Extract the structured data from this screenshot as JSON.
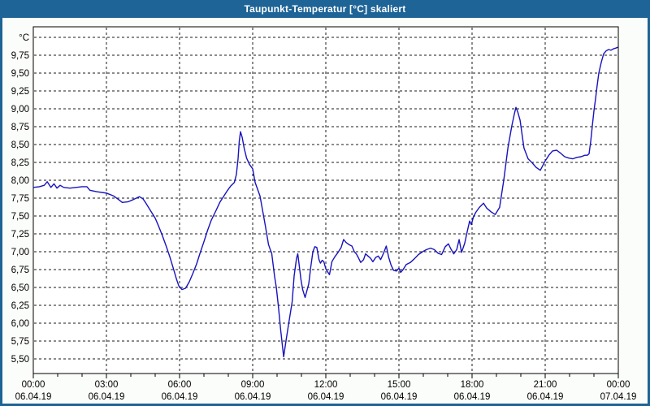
{
  "window": {
    "title": "Taupunkt-Temperatur [°C] skaliert"
  },
  "colors": {
    "titlebar": "#1e6496",
    "window_border": "#1e6496",
    "window_bg": "#fbfdfa",
    "plot_bg": "#ffffff",
    "plot_border": "#000000",
    "grid": "#1a1a1a",
    "tick": "#000000",
    "label_text": "#000000",
    "title_text": "#ffffff",
    "line": "#1813bd"
  },
  "chart_data": {
    "type": "line",
    "title": "Taupunkt-Temperatur [°C] skaliert",
    "xlabel": "",
    "ylabel": "°C",
    "xlim_hours": [
      0,
      24
    ],
    "ylim": [
      5.3,
      10.15
    ],
    "grid": "dashed",
    "legend": "none",
    "y_axis": {
      "unit_label": "°C",
      "unit_label_value": 10.0,
      "gridline_min": 5.5,
      "gridline_max": 10.0,
      "gridline_step": 0.25,
      "tick_labels": [
        {
          "label": "9,75",
          "value": 9.75
        },
        {
          "label": "9,50",
          "value": 9.5
        },
        {
          "label": "9,25",
          "value": 9.25
        },
        {
          "label": "9,00",
          "value": 9.0
        },
        {
          "label": "8,75",
          "value": 8.75
        },
        {
          "label": "8,50",
          "value": 8.5
        },
        {
          "label": "8,25",
          "value": 8.25
        },
        {
          "label": "8,00",
          "value": 8.0
        },
        {
          "label": "7,75",
          "value": 7.75
        },
        {
          "label": "7,50",
          "value": 7.5
        },
        {
          "label": "7,25",
          "value": 7.25
        },
        {
          "label": "7,00",
          "value": 7.0
        },
        {
          "label": "6,75",
          "value": 6.75
        },
        {
          "label": "6,50",
          "value": 6.5
        },
        {
          "label": "6,25",
          "value": 6.25
        },
        {
          "label": "6,00",
          "value": 6.0
        },
        {
          "label": "5,75",
          "value": 5.75
        },
        {
          "label": "5,50",
          "value": 5.5
        }
      ]
    },
    "x_axis": {
      "minor_tick_every_hours": 1,
      "major_tick_every_hours": 3,
      "ticks": [
        {
          "t": 0,
          "time": "00:00",
          "date": "06.04.19"
        },
        {
          "t": 3,
          "time": "03:00",
          "date": "06.04.19"
        },
        {
          "t": 6,
          "time": "06:00",
          "date": "06.04.19"
        },
        {
          "t": 9,
          "time": "09:00",
          "date": "06.04.19"
        },
        {
          "t": 12,
          "time": "12:00",
          "date": "06.04.19"
        },
        {
          "t": 15,
          "time": "15:00",
          "date": "06.04.19"
        },
        {
          "t": 18,
          "time": "18:00",
          "date": "06.04.19"
        },
        {
          "t": 21,
          "time": "21:00",
          "date": "06.04.19"
        },
        {
          "t": 24,
          "time": "00:00",
          "date": "07.04.19"
        }
      ]
    },
    "series": [
      {
        "name": "Taupunkt-Temperatur",
        "points": [
          [
            0.0,
            7.9
          ],
          [
            0.25,
            7.91
          ],
          [
            0.45,
            7.93
          ],
          [
            0.57,
            7.98
          ],
          [
            0.72,
            7.9
          ],
          [
            0.85,
            7.95
          ],
          [
            0.97,
            7.89
          ],
          [
            1.1,
            7.93
          ],
          [
            1.25,
            7.9
          ],
          [
            1.5,
            7.89
          ],
          [
            1.75,
            7.9
          ],
          [
            2.0,
            7.91
          ],
          [
            2.2,
            7.91
          ],
          [
            2.32,
            7.86
          ],
          [
            2.6,
            7.84
          ],
          [
            3.0,
            7.82
          ],
          [
            3.3,
            7.78
          ],
          [
            3.5,
            7.73
          ],
          [
            3.65,
            7.69
          ],
          [
            3.9,
            7.7
          ],
          [
            4.1,
            7.73
          ],
          [
            4.35,
            7.77
          ],
          [
            4.5,
            7.74
          ],
          [
            4.62,
            7.68
          ],
          [
            4.8,
            7.58
          ],
          [
            5.0,
            7.47
          ],
          [
            5.15,
            7.35
          ],
          [
            5.3,
            7.22
          ],
          [
            5.45,
            7.08
          ],
          [
            5.6,
            6.93
          ],
          [
            5.75,
            6.76
          ],
          [
            5.87,
            6.62
          ],
          [
            5.97,
            6.52
          ],
          [
            6.1,
            6.47
          ],
          [
            6.25,
            6.49
          ],
          [
            6.4,
            6.58
          ],
          [
            6.55,
            6.7
          ],
          [
            6.7,
            6.83
          ],
          [
            6.85,
            6.99
          ],
          [
            7.0,
            7.14
          ],
          [
            7.15,
            7.3
          ],
          [
            7.3,
            7.44
          ],
          [
            7.5,
            7.58
          ],
          [
            7.65,
            7.69
          ],
          [
            7.8,
            7.77
          ],
          [
            7.95,
            7.85
          ],
          [
            8.1,
            7.92
          ],
          [
            8.25,
            7.97
          ],
          [
            8.33,
            8.08
          ],
          [
            8.4,
            8.3
          ],
          [
            8.45,
            8.55
          ],
          [
            8.5,
            8.68
          ],
          [
            8.57,
            8.6
          ],
          [
            8.65,
            8.45
          ],
          [
            8.75,
            8.31
          ],
          [
            8.87,
            8.22
          ],
          [
            9.0,
            8.16
          ],
          [
            9.1,
            7.97
          ],
          [
            9.3,
            7.78
          ],
          [
            9.5,
            7.4
          ],
          [
            9.65,
            7.1
          ],
          [
            9.73,
            7.02
          ],
          [
            9.78,
            6.98
          ],
          [
            9.9,
            6.65
          ],
          [
            9.97,
            6.5
          ],
          [
            10.05,
            6.25
          ],
          [
            10.15,
            5.9
          ],
          [
            10.27,
            5.53
          ],
          [
            10.37,
            5.76
          ],
          [
            10.47,
            5.98
          ],
          [
            10.62,
            6.3
          ],
          [
            10.7,
            6.66
          ],
          [
            10.8,
            6.91
          ],
          [
            10.85,
            6.97
          ],
          [
            10.92,
            6.78
          ],
          [
            10.98,
            6.61
          ],
          [
            11.05,
            6.47
          ],
          [
            11.15,
            6.36
          ],
          [
            11.3,
            6.55
          ],
          [
            11.38,
            6.78
          ],
          [
            11.47,
            7.0
          ],
          [
            11.55,
            7.07
          ],
          [
            11.63,
            7.06
          ],
          [
            11.72,
            6.89
          ],
          [
            11.78,
            6.84
          ],
          [
            11.85,
            6.88
          ],
          [
            11.92,
            6.86
          ],
          [
            12.0,
            6.76
          ],
          [
            12.07,
            6.72
          ],
          [
            12.15,
            6.68
          ],
          [
            12.25,
            6.86
          ],
          [
            12.37,
            6.93
          ],
          [
            12.5,
            6.99
          ],
          [
            12.63,
            7.06
          ],
          [
            12.73,
            7.17
          ],
          [
            12.83,
            7.13
          ],
          [
            12.95,
            7.1
          ],
          [
            13.07,
            7.08
          ],
          [
            13.17,
            7.0
          ],
          [
            13.25,
            6.97
          ],
          [
            13.33,
            6.92
          ],
          [
            13.43,
            6.85
          ],
          [
            13.55,
            6.89
          ],
          [
            13.63,
            6.97
          ],
          [
            13.73,
            6.94
          ],
          [
            13.83,
            6.91
          ],
          [
            13.93,
            6.86
          ],
          [
            14.05,
            6.92
          ],
          [
            14.15,
            6.94
          ],
          [
            14.25,
            6.89
          ],
          [
            14.37,
            6.98
          ],
          [
            14.48,
            7.08
          ],
          [
            14.58,
            6.92
          ],
          [
            14.68,
            6.81
          ],
          [
            14.78,
            6.74
          ],
          [
            14.9,
            6.73
          ],
          [
            15.0,
            6.77
          ],
          [
            15.07,
            6.71
          ],
          [
            15.17,
            6.75
          ],
          [
            15.3,
            6.82
          ],
          [
            15.47,
            6.85
          ],
          [
            15.63,
            6.9
          ],
          [
            15.8,
            6.96
          ],
          [
            15.97,
            7.0
          ],
          [
            16.13,
            7.03
          ],
          [
            16.3,
            7.05
          ],
          [
            16.45,
            7.03
          ],
          [
            16.6,
            6.98
          ],
          [
            16.75,
            6.96
          ],
          [
            16.9,
            7.07
          ],
          [
            17.03,
            7.11
          ],
          [
            17.13,
            7.04
          ],
          [
            17.25,
            6.97
          ],
          [
            17.37,
            7.03
          ],
          [
            17.47,
            7.17
          ],
          [
            17.57,
            6.99
          ],
          [
            17.7,
            7.12
          ],
          [
            17.8,
            7.28
          ],
          [
            17.9,
            7.43
          ],
          [
            17.97,
            7.38
          ],
          [
            18.05,
            7.48
          ],
          [
            18.15,
            7.55
          ],
          [
            18.3,
            7.62
          ],
          [
            18.47,
            7.68
          ],
          [
            18.6,
            7.61
          ],
          [
            18.77,
            7.56
          ],
          [
            18.95,
            7.52
          ],
          [
            19.13,
            7.62
          ],
          [
            19.3,
            8.0
          ],
          [
            19.47,
            8.45
          ],
          [
            19.63,
            8.76
          ],
          [
            19.73,
            8.92
          ],
          [
            19.8,
            9.02
          ],
          [
            19.88,
            8.95
          ],
          [
            19.97,
            8.84
          ],
          [
            20.13,
            8.45
          ],
          [
            20.3,
            8.3
          ],
          [
            20.45,
            8.25
          ],
          [
            20.63,
            8.18
          ],
          [
            20.8,
            8.14
          ],
          [
            21.0,
            8.27
          ],
          [
            21.15,
            8.35
          ],
          [
            21.3,
            8.41
          ],
          [
            21.47,
            8.42
          ],
          [
            21.63,
            8.38
          ],
          [
            21.8,
            8.33
          ],
          [
            21.97,
            8.31
          ],
          [
            22.13,
            8.3
          ],
          [
            22.3,
            8.32
          ],
          [
            22.47,
            8.33
          ],
          [
            22.63,
            8.35
          ],
          [
            22.73,
            8.35
          ],
          [
            22.8,
            8.37
          ],
          [
            22.87,
            8.55
          ],
          [
            22.93,
            8.75
          ],
          [
            23.0,
            8.97
          ],
          [
            23.07,
            9.15
          ],
          [
            23.13,
            9.32
          ],
          [
            23.2,
            9.5
          ],
          [
            23.3,
            9.65
          ],
          [
            23.4,
            9.77
          ],
          [
            23.5,
            9.81
          ],
          [
            23.6,
            9.83
          ],
          [
            23.7,
            9.82
          ],
          [
            23.8,
            9.84
          ],
          [
            23.9,
            9.85
          ],
          [
            23.97,
            9.86
          ]
        ]
      }
    ]
  }
}
